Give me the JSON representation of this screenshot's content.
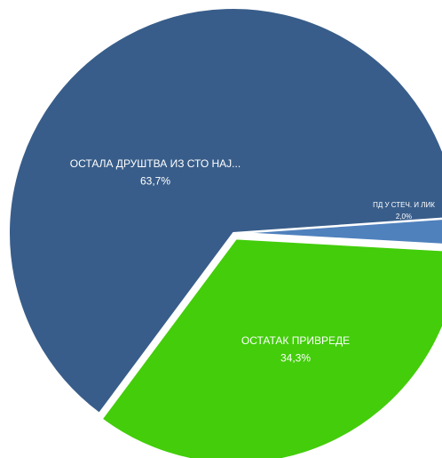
{
  "chart_data": {
    "type": "pie",
    "categories": [
      "ОСТАЛА ДРУШТВА ИЗ СТО НАЈ...",
      "ПД У СТЕЧ. И ЛИК",
      "ОСТАТАК ПРИВРЕДЕ"
    ],
    "values": [
      63.7,
      2.0,
      34.3
    ],
    "value_labels": [
      "63,7%",
      "2,0%",
      "34,3%"
    ],
    "colors": [
      "#385d8a",
      "#4f81bd",
      "#43cd0b"
    ]
  }
}
